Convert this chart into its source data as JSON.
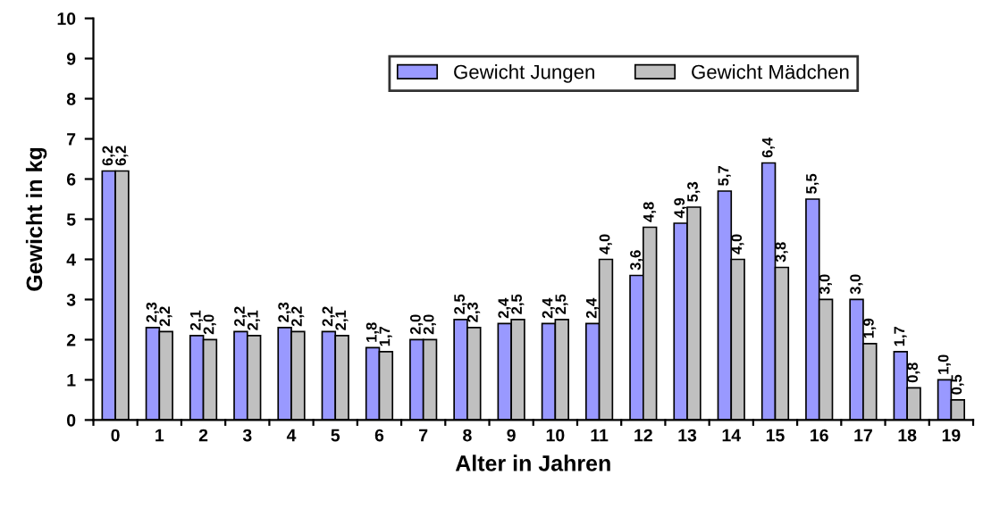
{
  "chart_data": {
    "type": "bar",
    "xlabel": "Alter in Jahren",
    "ylabel": "Gewicht in kg",
    "categories": [
      "0",
      "1",
      "2",
      "3",
      "4",
      "5",
      "6",
      "7",
      "8",
      "9",
      "10",
      "11",
      "12",
      "13",
      "14",
      "15",
      "16",
      "17",
      "18",
      "19"
    ],
    "series": [
      {
        "name": "Gewicht Jungen",
        "color": "#9999ff",
        "values": [
          6.2,
          2.3,
          2.1,
          2.2,
          2.3,
          2.2,
          1.8,
          2.0,
          2.5,
          2.4,
          2.4,
          2.4,
          3.6,
          4.9,
          5.7,
          6.4,
          5.5,
          3.0,
          1.7,
          1.0
        ],
        "value_labels": [
          "6,2",
          "2,3",
          "2,1",
          "2,2",
          "2,3",
          "2,2",
          "1,8",
          "2,0",
          "2,5",
          "2,4",
          "2,4",
          "2,4",
          "3,6",
          "4,9",
          "5,7",
          "6,4",
          "5,5",
          "3,0",
          "1,7",
          "1,0"
        ]
      },
      {
        "name": "Gewicht Mädchen",
        "color": "#c0c0c0",
        "values": [
          6.2,
          2.2,
          2.0,
          2.1,
          2.2,
          2.1,
          1.7,
          2.0,
          2.3,
          2.5,
          2.5,
          4.0,
          4.8,
          5.3,
          4.0,
          3.8,
          3.0,
          1.9,
          0.8,
          0.5
        ],
        "value_labels": [
          "6,2",
          "2,2",
          "2,0",
          "2,1",
          "2,2",
          "2,1",
          "1,7",
          "2,0",
          "2,3",
          "2,5",
          "2,5",
          "4,0",
          "4,8",
          "5,3",
          "4,0",
          "3,8",
          "3,0",
          "1,9",
          "0,8",
          "0,5"
        ]
      }
    ],
    "ylim": [
      0,
      10
    ],
    "yticks": [
      0,
      1,
      2,
      3,
      4,
      5,
      6,
      7,
      8,
      9,
      10
    ],
    "grid": false,
    "legend": "top right"
  }
}
